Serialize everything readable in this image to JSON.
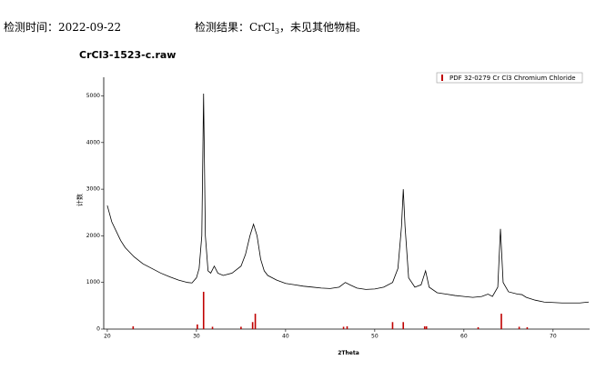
{
  "header": {
    "time": "检测时间：2022-09-22",
    "result_prefix": "检测结果：CrCl",
    "result_sub": "3",
    "result_suffix": "，未见其他物相。"
  },
  "chart_data": {
    "type": "line",
    "title": "CrCl3-1523-c.raw",
    "x_label": "2Theta",
    "y_label": "计数",
    "xlim": [
      19.6,
      74.1
    ],
    "ylim": [
      0,
      5400
    ],
    "xticks": [
      20,
      30,
      40,
      50,
      60,
      70
    ],
    "yticks": [
      0,
      1000,
      2000,
      3000,
      4000,
      5000
    ],
    "legend_position": "upper right",
    "x": [
      20,
      20.5,
      21,
      21.5,
      22,
      22.5,
      23,
      24,
      25,
      26,
      27,
      28,
      29,
      29.5,
      30,
      30.3,
      30.6,
      30.8,
      31,
      31.3,
      31.6,
      32,
      32.4,
      33,
      34,
      35,
      35.5,
      36,
      36.4,
      36.8,
      37.2,
      37.6,
      38,
      39,
      40,
      41,
      42,
      43,
      44,
      45,
      46,
      46.7,
      47.2,
      48,
      49,
      50,
      51,
      52,
      52.6,
      53,
      53.2,
      53.4,
      53.8,
      54.5,
      55.2,
      55.7,
      56.1,
      57,
      58,
      59,
      60,
      61,
      62,
      62.7,
      63.2,
      63.8,
      64.1,
      64.4,
      65,
      66,
      66.5,
      67,
      68,
      69,
      70,
      71,
      72,
      73,
      74
    ],
    "series": [
      {
        "color": "#000000",
        "values": [
          2650,
          2300,
          2100,
          1900,
          1750,
          1650,
          1550,
          1400,
          1300,
          1200,
          1120,
          1050,
          1000,
          990,
          1100,
          1300,
          2000,
          5050,
          2000,
          1250,
          1200,
          1350,
          1200,
          1150,
          1200,
          1350,
          1600,
          2000,
          2250,
          2000,
          1500,
          1250,
          1150,
          1050,
          980,
          950,
          920,
          900,
          880,
          870,
          900,
          1000,
          950,
          880,
          850,
          860,
          900,
          1000,
          1300,
          2200,
          3000,
          2200,
          1100,
          900,
          950,
          1250,
          900,
          780,
          750,
          720,
          700,
          680,
          700,
          750,
          700,
          900,
          2150,
          1000,
          800,
          750,
          740,
          680,
          620,
          580,
          570,
          560,
          560,
          560,
          580
        ]
      }
    ],
    "references": {
      "name": "PDF 32-0279 Cr Cl3 Chromium Chloride",
      "color": "#c00000",
      "x": [
        22.9,
        30.1,
        30.8,
        31.8,
        35.0,
        36.3,
        36.6,
        46.5,
        46.9,
        52.0,
        53.2,
        55.6,
        55.8,
        61.6,
        64.2,
        66.2,
        67.1
      ],
      "values": [
        60,
        100,
        800,
        50,
        50,
        150,
        330,
        50,
        60,
        150,
        150,
        60,
        60,
        40,
        330,
        50,
        40
      ]
    }
  }
}
